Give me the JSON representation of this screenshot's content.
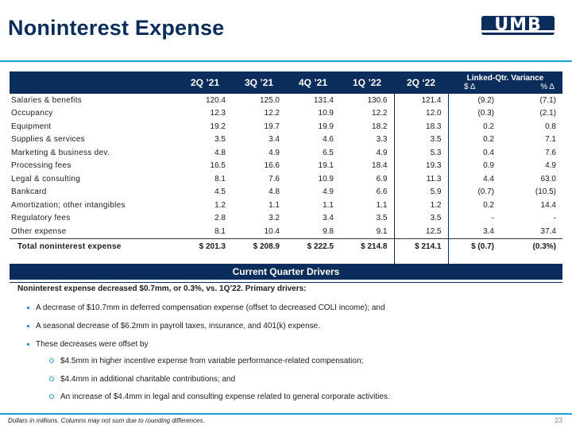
{
  "header": {
    "title": "Noninterest Expense",
    "logo_text": "UMB"
  },
  "table": {
    "columns": [
      "2Q ’21",
      "3Q ’21",
      "4Q ’21",
      "1Q ’22",
      "2Q ‘22"
    ],
    "variance_header": "Linked-Qtr. Variance",
    "variance_sub": [
      "$ Δ",
      "% Δ"
    ],
    "rows": [
      {
        "label": "Salaries & benefits",
        "values": [
          "120.4",
          "125.0",
          "131.4",
          "130.6",
          "121.4"
        ],
        "var": [
          "(9.2)",
          "(7.1)"
        ]
      },
      {
        "label": "Occupancy",
        "values": [
          "12.3",
          "12.2",
          "10.9",
          "12.2",
          "12.0"
        ],
        "var": [
          "(0.3)",
          "(2.1)"
        ]
      },
      {
        "label": "Equipment",
        "values": [
          "19.2",
          "19.7",
          "19.9",
          "18.2",
          "18.3"
        ],
        "var": [
          "0.2",
          "0.8"
        ]
      },
      {
        "label": "Supplies & services",
        "values": [
          "3.5",
          "3.4",
          "4.6",
          "3.3",
          "3.5"
        ],
        "var": [
          "0.2",
          "7.1"
        ]
      },
      {
        "label": "Marketing & business dev.",
        "values": [
          "4.8",
          "4.9",
          "6.5",
          "4.9",
          "5.3"
        ],
        "var": [
          "0.4",
          "7.6"
        ]
      },
      {
        "label": "Processing fees",
        "values": [
          "16.5",
          "16.6",
          "19.1",
          "18.4",
          "19.3"
        ],
        "var": [
          "0.9",
          "4.9"
        ]
      },
      {
        "label": "Legal & consulting",
        "values": [
          "8.1",
          "7.6",
          "10.9",
          "6.9",
          "11.3"
        ],
        "var": [
          "4.4",
          "63.0"
        ]
      },
      {
        "label": "Bankcard",
        "values": [
          "4.5",
          "4.8",
          "4.9",
          "6.6",
          "5.9"
        ],
        "var": [
          "(0.7)",
          "(10.5)"
        ]
      },
      {
        "label": "Amortization; other intangibles",
        "values": [
          "1.2",
          "1.1",
          "1.1",
          "1.1",
          "1.2"
        ],
        "var": [
          "0.2",
          "14.4"
        ]
      },
      {
        "label": "Regulatory fees",
        "values": [
          "2.8",
          "3.2",
          "3.4",
          "3.5",
          "3.5"
        ],
        "var": [
          "-",
          "-"
        ]
      },
      {
        "label": "Other expense",
        "values": [
          "8.1",
          "10.4",
          "9.8",
          "9.1",
          "12.5"
        ],
        "var": [
          "3.4",
          "37.4"
        ]
      }
    ],
    "total": {
      "label": "Total noninterest expense",
      "values": [
        "$ 201.3",
        "$ 208.9",
        "$ 222.5",
        "$ 214.8",
        "$ 214.1"
      ],
      "var": [
        "$ (0.7)",
        "(0.3%)"
      ]
    }
  },
  "drivers": {
    "title": "Current Quarter Drivers",
    "lead": "Noninterest expense decreased $0.7mm, or 0.3%, vs. 1Q’22. Primary drivers:",
    "bullets": [
      "A decrease of $10.7mm in deferred compensation expense (offset to decreased COLI income); and",
      "A seasonal decrease of $6.2mm in payroll taxes, insurance, and 401(k) expense.",
      "These decreases were offset by"
    ],
    "sub_bullets": [
      "$4.5mm in higher incentive expense from variable performance-related compensation;",
      "$4.4mm in additional charitable contributions; and",
      "An increase of $4.4mm in legal and consulting expense related to general corporate activities."
    ]
  },
  "footer": {
    "note": "Dollars in millions. Columns may not sum due to rounding differences.",
    "page": "23"
  },
  "colors": {
    "navy": "#0b2d5b",
    "accent": "#1e9fd6"
  }
}
